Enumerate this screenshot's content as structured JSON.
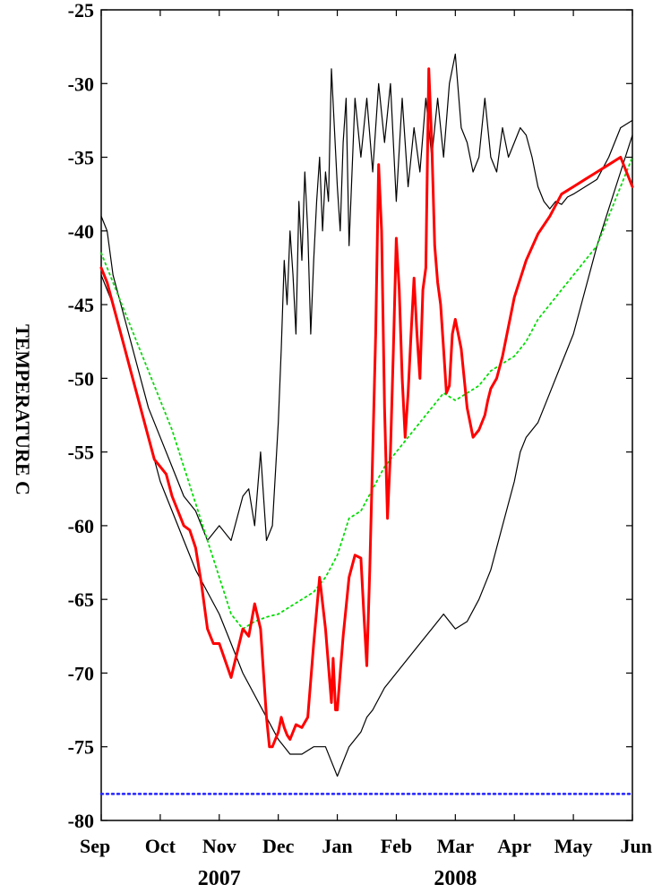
{
  "chart_data": {
    "type": "line",
    "title": "",
    "xlabel": "",
    "ylabel": "TEMPERATURE C",
    "ylim": [
      -80,
      -25
    ],
    "yticks": [
      -25,
      -30,
      -35,
      -40,
      -45,
      -50,
      -55,
      -60,
      -65,
      -70,
      -75,
      -80
    ],
    "xlim": [
      0,
      9
    ],
    "xticks": [
      {
        "label": "Sep",
        "x": 0
      },
      {
        "label": "Oct",
        "x": 1
      },
      {
        "label": "Nov",
        "x": 2
      },
      {
        "label": "Dec",
        "x": 3
      },
      {
        "label": "Jan",
        "x": 4
      },
      {
        "label": "Feb",
        "x": 5
      },
      {
        "label": "Mar",
        "x": 6
      },
      {
        "label": "Apr",
        "x": 7
      },
      {
        "label": "May",
        "x": 8
      },
      {
        "label": "Jun",
        "x": 9
      }
    ],
    "year_labels": [
      {
        "label": "2007",
        "x": 2
      },
      {
        "label": "2008",
        "x": 6
      }
    ],
    "grid": false,
    "series": [
      {
        "color": "#ff0000",
        "style": "solid",
        "width": 3,
        "x": [
          0,
          0.1,
          0.2,
          0.3,
          0.4,
          0.5,
          0.6,
          0.7,
          0.8,
          0.9,
          1.0,
          1.1,
          1.2,
          1.3,
          1.4,
          1.5,
          1.6,
          1.7,
          1.8,
          1.9,
          2.0,
          2.2,
          2.4,
          2.5,
          2.6,
          2.7,
          2.8,
          2.85,
          2.9,
          2.95,
          3.0,
          3.05,
          3.1,
          3.15,
          3.2,
          3.3,
          3.4,
          3.5,
          3.6,
          3.7,
          3.8,
          3.9,
          3.93,
          3.97,
          4.0,
          4.05,
          4.1,
          4.2,
          4.3,
          4.4,
          4.45,
          4.5,
          4.55,
          4.6,
          4.65,
          4.7,
          4.75,
          4.8,
          4.85,
          4.9,
          4.95,
          5.0,
          5.05,
          5.1,
          5.15,
          5.2,
          5.25,
          5.3,
          5.35,
          5.4,
          5.45,
          5.5,
          5.55,
          5.6,
          5.65,
          5.7,
          5.75,
          5.8,
          5.85,
          5.9,
          5.95,
          6.0,
          6.1,
          6.2,
          6.3,
          6.4,
          6.5,
          6.55,
          6.6,
          6.7,
          6.8,
          6.9,
          7.0,
          7.2,
          7.4,
          7.6,
          7.8,
          8.0,
          8.2,
          8.4,
          8.6,
          8.8,
          9.0
        ],
        "y": [
          -42.5,
          -43.5,
          -45,
          -46.5,
          -48,
          -49.5,
          -51,
          -52.5,
          -54,
          -55.5,
          -56,
          -56.5,
          -58,
          -59,
          -60,
          -60.3,
          -61.5,
          -64,
          -67,
          -68,
          -68,
          -70.3,
          -67,
          -67.5,
          -65.3,
          -67,
          -73,
          -75,
          -75,
          -74.5,
          -74,
          -73,
          -73.7,
          -74.2,
          -74.5,
          -73.5,
          -73.7,
          -73,
          -68,
          -63.5,
          -67,
          -72,
          -69,
          -72.5,
          -72.5,
          -70,
          -67.5,
          -63.5,
          -62,
          -62.2,
          -66,
          -69.5,
          -63,
          -55,
          -47,
          -35.5,
          -40,
          -52,
          -59.5,
          -55,
          -48,
          -40.5,
          -44,
          -50,
          -54,
          -51,
          -47,
          -43.2,
          -47,
          -50,
          -44,
          -42.5,
          -29,
          -34,
          -41,
          -43.5,
          -45,
          -48,
          -51,
          -50.5,
          -47,
          -46,
          -48,
          -52,
          -54,
          -53.5,
          -52.5,
          -51.5,
          -50.7,
          -50,
          -48.5,
          -46.5,
          -44.5,
          -42,
          -40.2,
          -39,
          -37.5,
          -37,
          -36.5,
          -36,
          -35.5,
          -35,
          -37
        ]
      },
      {
        "color": "#000000",
        "style": "solid",
        "width": 1.2,
        "x": [
          0,
          0.1,
          0.2,
          0.4,
          0.6,
          0.8,
          1.0,
          1.2,
          1.4,
          1.6,
          1.8,
          2.0,
          2.2,
          2.4,
          2.5,
          2.6,
          2.7,
          2.8,
          2.9,
          3.0,
          3.05,
          3.1,
          3.15,
          3.2,
          3.25,
          3.3,
          3.35,
          3.4,
          3.45,
          3.5,
          3.55,
          3.6,
          3.65,
          3.7,
          3.75,
          3.8,
          3.85,
          3.9,
          3.95,
          4.0,
          4.05,
          4.1,
          4.15,
          4.2,
          4.3,
          4.4,
          4.5,
          4.6,
          4.7,
          4.8,
          4.9,
          5.0,
          5.1,
          5.2,
          5.3,
          5.4,
          5.5,
          5.6,
          5.7,
          5.8,
          5.9,
          6.0,
          6.1,
          6.2,
          6.3,
          6.4,
          6.5,
          6.6,
          6.7,
          6.8,
          6.9,
          7.0,
          7.1,
          7.2,
          7.3,
          7.4,
          7.5,
          7.6,
          7.7,
          7.8,
          7.9,
          8.0,
          8.2,
          8.4,
          8.6,
          8.8,
          9.0
        ],
        "y": [
          -39,
          -40,
          -43,
          -46,
          -49,
          -52,
          -54,
          -56,
          -58,
          -59,
          -61,
          -60,
          -61,
          -58,
          -57.5,
          -60,
          -55,
          -61,
          -60,
          -53,
          -48,
          -42,
          -45,
          -40,
          -43,
          -47,
          -38,
          -42,
          -36,
          -40,
          -47,
          -42,
          -38,
          -35,
          -40,
          -36,
          -38,
          -29,
          -33,
          -37,
          -40,
          -34,
          -31,
          -41,
          -31,
          -35,
          -31,
          -36,
          -30,
          -34,
          -30,
          -38,
          -31,
          -37,
          -33,
          -36,
          -31,
          -35,
          -31,
          -35,
          -30,
          -28,
          -33,
          -34,
          -36,
          -35,
          -31,
          -35,
          -36,
          -33,
          -35,
          -34,
          -33,
          -33.5,
          -35,
          -37,
          -38,
          -38.5,
          -38,
          -38.2,
          -37.7,
          -37.5,
          -37,
          -36.5,
          -35,
          -33,
          -32.5
        ]
      },
      {
        "color": "#000000",
        "style": "solid",
        "width": 1.2,
        "x": [
          0,
          0.2,
          0.4,
          0.6,
          0.8,
          1.0,
          1.2,
          1.4,
          1.6,
          1.8,
          2.0,
          2.2,
          2.4,
          2.6,
          2.8,
          3.0,
          3.1,
          3.2,
          3.4,
          3.6,
          3.8,
          3.9,
          4.0,
          4.1,
          4.2,
          4.3,
          4.4,
          4.5,
          4.6,
          4.8,
          5.0,
          5.2,
          5.4,
          5.6,
          5.8,
          6.0,
          6.2,
          6.4,
          6.6,
          6.8,
          7.0,
          7.1,
          7.2,
          7.3,
          7.4,
          7.5,
          7.6,
          7.8,
          8.0,
          8.2,
          8.4,
          8.6,
          8.8,
          9.0
        ],
        "y": [
          -43,
          -45,
          -48,
          -51,
          -54,
          -57,
          -59,
          -61,
          -63,
          -64.5,
          -66,
          -68,
          -70,
          -71.5,
          -73,
          -74.5,
          -75,
          -75.5,
          -75.5,
          -75,
          -75,
          -76,
          -77,
          -76,
          -75,
          -74.5,
          -74,
          -73,
          -72.5,
          -71,
          -70,
          -69,
          -68,
          -67,
          -66,
          -67,
          -66.5,
          -65,
          -63,
          -60,
          -57,
          -55,
          -54,
          -53.5,
          -53,
          -52,
          -51,
          -49,
          -47,
          -44,
          -41,
          -38.5,
          -36,
          -33.5
        ]
      },
      {
        "color": "#00dd00",
        "style": "dotted",
        "width": 1.8,
        "x": [
          0,
          0.2,
          0.4,
          0.6,
          0.8,
          1.0,
          1.2,
          1.4,
          1.6,
          1.8,
          2.0,
          2.2,
          2.4,
          2.6,
          2.8,
          3.0,
          3.2,
          3.4,
          3.6,
          3.8,
          4.0,
          4.2,
          4.4,
          4.6,
          4.8,
          5.0,
          5.2,
          5.4,
          5.6,
          5.8,
          6.0,
          6.2,
          6.4,
          6.6,
          6.8,
          7.0,
          7.2,
          7.4,
          7.6,
          7.8,
          8.0,
          8.2,
          8.4,
          8.6,
          8.8,
          9.0
        ],
        "y": [
          -41.5,
          -43.5,
          -45.5,
          -47.5,
          -49.5,
          -51.5,
          -53.5,
          -56,
          -58.5,
          -61,
          -63.5,
          -66,
          -67,
          -66.5,
          -66.2,
          -66,
          -65.5,
          -65,
          -64.5,
          -63.5,
          -62,
          -59.5,
          -59,
          -57.5,
          -56,
          -55,
          -54,
          -53,
          -52,
          -51,
          -51.5,
          -51,
          -50.5,
          -49.5,
          -49,
          -48.5,
          -47.5,
          -46,
          -45,
          -44,
          -43,
          -42,
          -41,
          -39,
          -37,
          -35
        ]
      },
      {
        "color": "#2222ff",
        "style": "dotted",
        "width": 2.5,
        "x": [
          0,
          9
        ],
        "y": [
          -78.2,
          -78.2
        ]
      }
    ]
  }
}
